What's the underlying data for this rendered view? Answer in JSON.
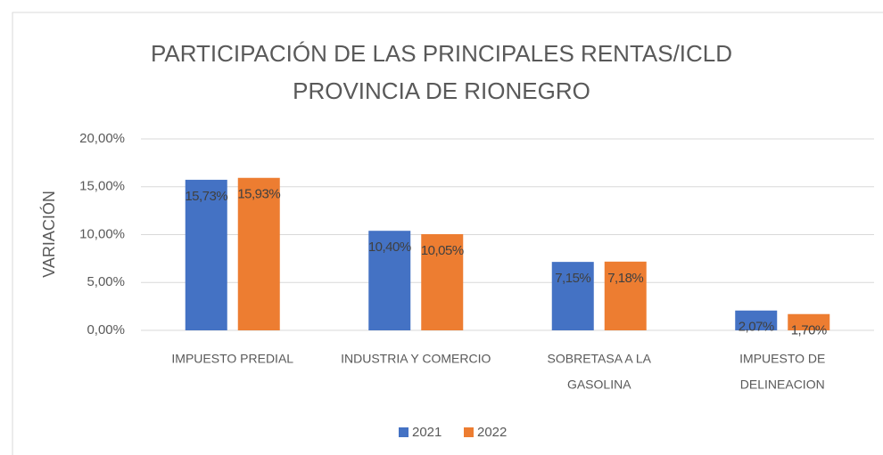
{
  "chart_data": {
    "type": "bar",
    "title": [
      "PARTICIPACIÓN DE LAS PRINCIPALES  RENTAS/ICLD",
      "PROVINCIA DE RIONEGRO"
    ],
    "y_label": "VARIACIÓN",
    "categories": [
      [
        "IMPUESTO PREDIAL"
      ],
      [
        "INDUSTRIA Y COMERCIO"
      ],
      [
        "SOBRETASA A LA",
        "GASOLINA"
      ],
      [
        "IMPUESTO DE",
        "DELINEACION"
      ]
    ],
    "series": [
      {
        "name": "2021",
        "color": "#4472c4",
        "values": [
          15.73,
          10.4,
          7.15,
          2.07
        ],
        "value_labels": [
          "15,73%",
          "10,40%",
          "7,15%",
          "2,07%"
        ]
      },
      {
        "name": "2022",
        "color": "#ed7d31",
        "values": [
          15.93,
          10.05,
          7.18,
          1.7
        ],
        "value_labels": [
          "15,93%",
          "10,05%",
          "7,18%",
          "1,70%"
        ]
      }
    ],
    "ylim": [
      0,
      20
    ],
    "yticks": [
      {
        "value": 0,
        "label": "0,00%"
      },
      {
        "value": 5,
        "label": "5,00%"
      },
      {
        "value": 10,
        "label": "10,00%"
      },
      {
        "value": 15,
        "label": "15,00%"
      },
      {
        "value": 20,
        "label": "20,00%"
      }
    ],
    "grid": true,
    "legend": "bottom"
  }
}
